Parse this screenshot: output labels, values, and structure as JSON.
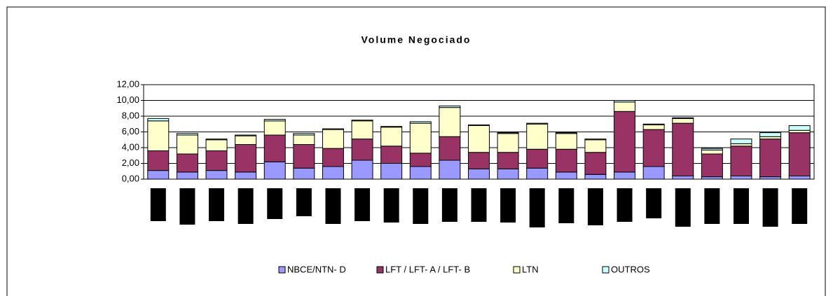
{
  "chart_data": {
    "type": "stacked_bar",
    "title": "Volume Negociado",
    "categories": [
      null,
      null,
      null,
      null,
      null,
      null,
      null,
      null,
      null,
      null,
      null,
      null,
      null,
      null,
      null,
      null,
      null,
      null,
      null,
      null,
      null,
      null,
      null
    ],
    "series": [
      {
        "name": "NBCE/NTN- D",
        "color": "#9999ff",
        "values": [
          1.1,
          0.9,
          1.1,
          0.9,
          2.2,
          1.4,
          1.6,
          2.4,
          2.0,
          1.6,
          2.4,
          1.3,
          1.3,
          1.4,
          0.9,
          0.6,
          0.9,
          1.6,
          0.4,
          0.3,
          0.4,
          0.3,
          0.4
        ]
      },
      {
        "name": "LFT / LFT- A / LFT- B",
        "color": "#993366",
        "values": [
          2.5,
          2.3,
          2.5,
          3.5,
          3.4,
          3.0,
          2.3,
          2.7,
          2.2,
          1.7,
          3.0,
          2.1,
          2.1,
          2.4,
          2.9,
          2.8,
          7.7,
          4.7,
          6.7,
          2.9,
          3.8,
          4.8,
          5.5
        ]
      },
      {
        "name": "LTN",
        "color": "#ffffcc",
        "values": [
          3.8,
          2.4,
          1.4,
          1.1,
          1.8,
          1.2,
          2.4,
          2.3,
          2.4,
          3.8,
          3.7,
          3.4,
          2.4,
          3.2,
          2.0,
          1.6,
          1.2,
          0.6,
          0.6,
          0.5,
          0.3,
          0.3,
          0.3
        ]
      },
      {
        "name": "OUTROS",
        "color": "#ccffff",
        "values": [
          0.3,
          0.2,
          0.1,
          0.1,
          0.2,
          0.2,
          0.1,
          0.1,
          0.1,
          0.2,
          0.2,
          0.1,
          0.1,
          0.1,
          0.1,
          0.1,
          0.2,
          0.1,
          0.1,
          0.2,
          0.6,
          0.5,
          0.6
        ]
      }
    ],
    "ylim": [
      0,
      12
    ],
    "yticks": [
      {
        "value": 0,
        "label": "0,00"
      },
      {
        "value": 2,
        "label": "2,00"
      },
      {
        "value": 4,
        "label": "4,00"
      },
      {
        "value": 6,
        "label": "6,00"
      },
      {
        "value": 8,
        "label": "8,00"
      },
      {
        "value": 10,
        "label": "10,00"
      },
      {
        "value": 12,
        "label": "12,00"
      }
    ],
    "grid": true,
    "legend": "bottom"
  }
}
